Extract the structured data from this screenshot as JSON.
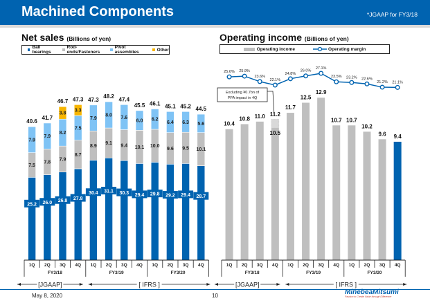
{
  "header": {
    "title": "Machined Components",
    "note": "*JGAAP for FY3/18"
  },
  "left": {
    "title": "Net sales",
    "unit": "(Billions of yen)",
    "legend": [
      "Ball bearings",
      "Rod-ends/Fasteners",
      "Pivot assemblies",
      "Other"
    ]
  },
  "right": {
    "title": "Operating income",
    "unit": "(Billions of yen)",
    "legend": [
      "Operating income",
      "Operating margin"
    ],
    "annotation_line1": "Excluding ¥0.7bn of",
    "annotation_line2": "PPA impact in 4Q"
  },
  "colors": {
    "ball": "#0063b0",
    "rod": "#bfbfbf",
    "pivot": "#7fc3f5",
    "other": "#f7b500",
    "oi": "#bfbfbf",
    "oi_latest": "#0063b0",
    "margin": "#0063b0"
  },
  "axis": {
    "quarters": [
      "1Q",
      "2Q",
      "3Q",
      "4Q",
      "1Q",
      "2Q",
      "3Q",
      "4Q",
      "1Q",
      "2Q",
      "3Q",
      "4Q"
    ],
    "fiscal_years": [
      "FY3/18",
      "FY3/19",
      "FY3/20"
    ],
    "jgaap": "[JGAAP]",
    "ifrs": "[ IFRS ]"
  },
  "chart_data": [
    {
      "type": "bar",
      "title": "Net sales (Billions of yen)",
      "stacked": true,
      "categories": [
        "FY3/18 1Q",
        "FY3/18 2Q",
        "FY3/18 3Q",
        "FY3/18 4Q",
        "FY3/19 1Q",
        "FY3/19 2Q",
        "FY3/19 3Q",
        "FY3/19 4Q",
        "FY3/20 1Q",
        "FY3/20 2Q",
        "FY3/20 3Q",
        "FY3/20 4Q"
      ],
      "series": [
        {
          "name": "Ball bearings",
          "values": [
            25.2,
            26.0,
            26.8,
            27.8,
            30.4,
            31.1,
            30.3,
            29.4,
            29.8,
            29.2,
            29.4,
            28.7
          ]
        },
        {
          "name": "Rod-ends/Fasteners",
          "values": [
            7.5,
            7.8,
            7.9,
            8.7,
            8.9,
            9.1,
            9.4,
            10.1,
            10.0,
            9.6,
            9.5,
            10.1
          ]
        },
        {
          "name": "Pivot assemblies",
          "values": [
            7.9,
            7.9,
            8.2,
            7.5,
            7.9,
            8.0,
            7.6,
            6.0,
            6.2,
            6.4,
            6.3,
            5.6
          ]
        },
        {
          "name": "Other",
          "values": [
            null,
            null,
            3.8,
            3.3,
            null,
            null,
            null,
            null,
            null,
            null,
            null,
            null
          ]
        }
      ],
      "totals": [
        40.6,
        41.7,
        46.7,
        47.3,
        47.3,
        48.2,
        47.4,
        45.5,
        46.1,
        45.1,
        45.2,
        44.5
      ],
      "legend_position": "top"
    },
    {
      "type": "bar",
      "title": "Operating income (Billions of yen)",
      "categories": [
        "FY3/18 1Q",
        "FY3/18 2Q",
        "FY3/18 3Q",
        "FY3/18 4Q",
        "FY3/19 1Q",
        "FY3/19 2Q",
        "FY3/19 3Q",
        "FY3/19 4Q",
        "FY3/20 1Q",
        "FY3/20 2Q",
        "FY3/20 3Q",
        "FY3/20 4Q"
      ],
      "series": [
        {
          "name": "Operating income",
          "values": [
            10.4,
            10.8,
            11.0,
            10.5,
            11.7,
            12.5,
            12.9,
            10.7,
            10.7,
            10.2,
            9.6,
            9.4
          ]
        },
        {
          "name": "Operating income excl. PPA",
          "values": [
            null,
            null,
            null,
            11.2,
            null,
            null,
            null,
            null,
            null,
            null,
            null,
            null
          ]
        },
        {
          "name": "Operating margin",
          "type": "line",
          "values": [
            "25.6%",
            "25.9%",
            "23.6%",
            "22.1%",
            "24.8%",
            "26.0%",
            "27.1%",
            "23.5%",
            "23.2%",
            "22.6%",
            "21.2%",
            "21.1%"
          ]
        }
      ],
      "margin_values": [
        25.6,
        25.9,
        23.6,
        22.1,
        24.8,
        26.0,
        27.1,
        23.5,
        23.2,
        22.6,
        21.2,
        21.1
      ],
      "legend_position": "top"
    }
  ]
}
